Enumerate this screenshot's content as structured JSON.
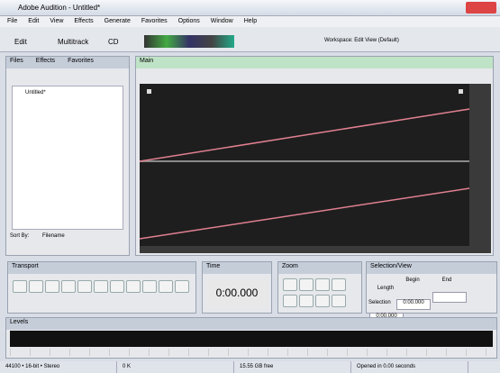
{
  "window": {
    "title": "Adobe Audition - Untitled*"
  },
  "menu": [
    "File",
    "Edit",
    "View",
    "Effects",
    "Generate",
    "Favorites",
    "Options",
    "Window",
    "Help"
  ],
  "toolbar": {
    "edit": "Edit",
    "multitrack": "Multitrack",
    "cd": "CD",
    "workspace": "Workspace: Edit View (Default)"
  },
  "left_panel": {
    "tabs": [
      "Files",
      "Effects",
      "Favorites"
    ],
    "file": "Untitled*",
    "sort_label": "Sort By:",
    "sort_value": "Filename"
  },
  "main_panel": {
    "tab": "Main"
  },
  "transport": {
    "title": "Transport"
  },
  "time": {
    "title": "Time",
    "display": "0:00.000"
  },
  "zoom": {
    "title": "Zoom"
  },
  "selection": {
    "title": "Selection/View",
    "headers": [
      "Begin",
      "End",
      "Length"
    ],
    "rows": [
      {
        "label": "Selection",
        "values": [
          "0:00.000",
          "",
          "0:00.000"
        ]
      },
      {
        "label": "View",
        "values": [
          "0:00.000",
          "",
          "0:00.000"
        ]
      }
    ]
  },
  "levels": {
    "title": "Levels"
  },
  "status": [
    "44100 • 16-bit • Stereo",
    "0 K",
    "15.55 GB free",
    "Opened in 0.00 seconds"
  ]
}
